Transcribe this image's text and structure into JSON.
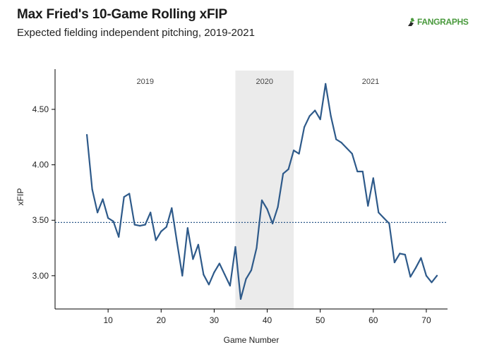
{
  "header": {
    "title": "Max Fried's 10-Game Rolling xFIP",
    "subtitle": "Expected fielding independent pitching, 2019-2021",
    "logo_text": "FANGRAPHS"
  },
  "colors": {
    "line": "#2e5a8a",
    "shade": "#ebebeb",
    "reference": "#2e5a8a",
    "logo": "#4a9a3d"
  },
  "chart_data": {
    "type": "line",
    "title": "Max Fried's 10-Game Rolling xFIP",
    "subtitle": "Expected fielding independent pitching, 2019-2021",
    "xlabel": "Game Number",
    "ylabel": "xFIP",
    "xlim": [
      0,
      74
    ],
    "ylim": [
      2.7,
      4.85
    ],
    "xticks": [
      10,
      20,
      30,
      40,
      50,
      60,
      70
    ],
    "yticks": [
      3.0,
      3.5,
      4.0,
      4.5
    ],
    "ytick_labels": [
      "3.00",
      "3.50",
      "4.00",
      "4.50"
    ],
    "reference_line": 3.48,
    "seasons": [
      {
        "label": "2019",
        "start": 0,
        "end": 34,
        "shaded": false
      },
      {
        "label": "2020",
        "start": 34,
        "end": 45,
        "shaded": true
      },
      {
        "label": "2021",
        "start": 45,
        "end": 74,
        "shaded": false
      }
    ],
    "series": [
      {
        "x": [
          6,
          7,
          8,
          9,
          10,
          11,
          12,
          13,
          14,
          15,
          16,
          17,
          18,
          19,
          20,
          21,
          22,
          23,
          24,
          25,
          26,
          27,
          28,
          29,
          30,
          31,
          32,
          33,
          34,
          35,
          36,
          37,
          38,
          39,
          40,
          41,
          42,
          43,
          44,
          45,
          46,
          47,
          48,
          49,
          50,
          51,
          52,
          53,
          54,
          55,
          56,
          57,
          58,
          59,
          60,
          61,
          62,
          63,
          64,
          65,
          66,
          67,
          68,
          69,
          70,
          71,
          72
        ],
        "values": [
          4.27,
          3.78,
          3.57,
          3.69,
          3.52,
          3.49,
          3.35,
          3.71,
          3.74,
          3.46,
          3.45,
          3.46,
          3.57,
          3.32,
          3.4,
          3.44,
          3.61,
          3.3,
          3.0,
          3.43,
          3.15,
          3.28,
          3.01,
          2.92,
          3.03,
          3.11,
          3.01,
          2.91,
          3.26,
          2.79,
          2.97,
          3.05,
          3.25,
          3.68,
          3.6,
          3.47,
          3.62,
          3.92,
          3.96,
          4.13,
          4.1,
          4.34,
          4.44,
          4.49,
          4.41,
          4.73,
          4.44,
          4.23,
          4.2,
          4.15,
          4.1,
          3.94,
          3.94,
          3.63,
          3.88,
          3.57,
          3.52,
          3.47,
          3.12,
          3.2,
          3.19,
          2.99,
          3.07,
          3.16,
          3.0,
          2.94,
          3.0
        ]
      }
    ]
  }
}
